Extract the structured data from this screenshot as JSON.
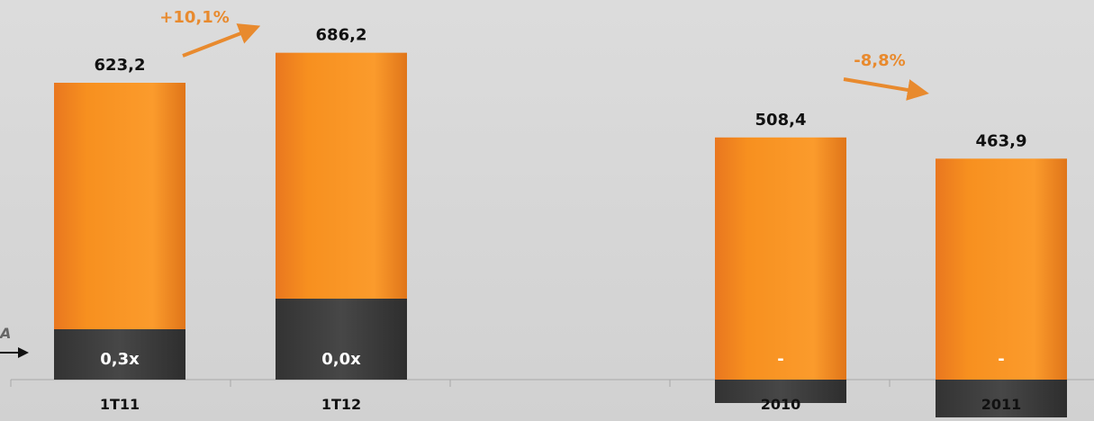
{
  "chart_data": {
    "type": "bar",
    "stacked": true,
    "categories": [
      "1T11",
      "1T12",
      "2010",
      "2011"
    ],
    "series": [
      {
        "values": [
          623.2,
          686.2,
          508.4,
          463.9
        ],
        "color": "#f28c28"
      }
    ],
    "total_labels": [
      "623,2",
      "686,2",
      "508,4",
      "463,9"
    ],
    "ratio_labels": [
      "0,3x",
      "0,0x",
      "-",
      "-"
    ],
    "growth_annotations": [
      {
        "text": "+10,1%",
        "from": "1T11",
        "to": "1T12",
        "direction": "up"
      },
      {
        "text": "-8,8%",
        "from": "2010",
        "to": "2011",
        "direction": "down"
      }
    ],
    "axis_marker_label": "A",
    "grid": false,
    "colors": {
      "bar": "#f28c28",
      "lower_segment": "#404040",
      "growth": "#e88a2e"
    }
  }
}
